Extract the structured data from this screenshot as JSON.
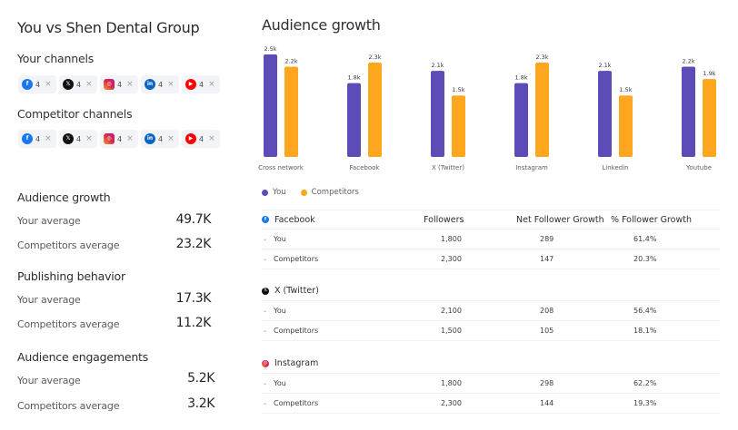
{
  "left": {
    "title": "You vs Shen Dental Group",
    "your_channels_label": "Your channels",
    "competitor_channels_label": "Competitor channels",
    "your_channels": [
      {
        "network": "facebook",
        "icon": "facebook-icon",
        "count": "4"
      },
      {
        "network": "x",
        "icon": "x-twitter-icon",
        "count": "4"
      },
      {
        "network": "instagram",
        "icon": "instagram-icon",
        "count": "4"
      },
      {
        "network": "linkedin",
        "icon": "linkedin-icon",
        "count": "4"
      },
      {
        "network": "youtube",
        "icon": "youtube-icon",
        "count": "4"
      }
    ],
    "competitor_channels": [
      {
        "network": "facebook",
        "icon": "facebook-icon",
        "count": "4"
      },
      {
        "network": "x",
        "icon": "x-twitter-icon",
        "count": "4"
      },
      {
        "network": "instagram",
        "icon": "instagram-icon",
        "count": "4"
      },
      {
        "network": "linkedin",
        "icon": "linkedin-icon",
        "count": "4"
      },
      {
        "network": "youtube",
        "icon": "youtube-icon",
        "count": "4"
      }
    ],
    "remove_glyph": "×",
    "sections": [
      {
        "title": "Audience growth",
        "your_label": "Your average",
        "your_value": "49.7K",
        "comp_label": "Competitors average",
        "comp_value": "23.2K"
      },
      {
        "title": "Publishing behavior",
        "your_label": "Your average",
        "your_value": "17.3K",
        "comp_label": "Competitors average",
        "comp_value": "11.2K"
      },
      {
        "title": "Audience engagements",
        "your_label": "Your average",
        "your_value": "5.2K",
        "comp_label": "Competitors average",
        "comp_value": "3.2K"
      }
    ]
  },
  "right": {
    "title": "Audience growth",
    "legend": [
      {
        "label": "You",
        "color": "#5b4cb8"
      },
      {
        "label": "Competitors",
        "color": "#fea71e"
      }
    ],
    "table": {
      "columns": [
        "Followers",
        "Net Follower Growth",
        "% Follower Growth"
      ],
      "groups": [
        {
          "platform": "Facebook",
          "icon": "facebook-icon",
          "rows": [
            {
              "name": "You",
              "followers": "1,800",
              "net": "289",
              "pct": "61.4%"
            },
            {
              "name": "Competitors",
              "followers": "2,300",
              "net": "147",
              "pct": "20.3%"
            }
          ]
        },
        {
          "platform": "X (Twitter)",
          "icon": "x-twitter-icon",
          "rows": [
            {
              "name": "You",
              "followers": "2,100",
              "net": "208",
              "pct": "56.4%"
            },
            {
              "name": "Competitors",
              "followers": "1,500",
              "net": "105",
              "pct": "18.1%"
            }
          ]
        },
        {
          "platform": "Instagram",
          "icon": "instagram-icon",
          "rows": [
            {
              "name": "You",
              "followers": "1,800",
              "net": "298",
              "pct": "62.2%"
            },
            {
              "name": "Competitors",
              "followers": "2,300",
              "net": "144",
              "pct": "19.3%"
            }
          ]
        }
      ]
    }
  },
  "chart_data": {
    "type": "bar",
    "title": "Audience growth",
    "categories": [
      "Cross network",
      "Facebook",
      "X (Twitter)",
      "Instagram",
      "Linkedin",
      "Youtube"
    ],
    "series": [
      {
        "name": "You",
        "color": "#5b4cb8",
        "values": [
          2.5,
          1.8,
          2.1,
          1.8,
          2.1,
          2.2
        ],
        "labels": [
          "2.5k",
          "1.8k",
          "2.1k",
          "1.8k",
          "2.1k",
          "2.2k"
        ]
      },
      {
        "name": "Competitors",
        "color": "#fea71e",
        "values": [
          2.2,
          2.3,
          1.5,
          2.3,
          1.5,
          1.9
        ],
        "labels": [
          "2.2k",
          "2.3k",
          "1.5k",
          "2.3k",
          "1.5k",
          "1.9k"
        ]
      }
    ],
    "unit": "k",
    "ylim": [
      0,
      2.5
    ],
    "grid": false,
    "legend_position": "bottom-left"
  }
}
